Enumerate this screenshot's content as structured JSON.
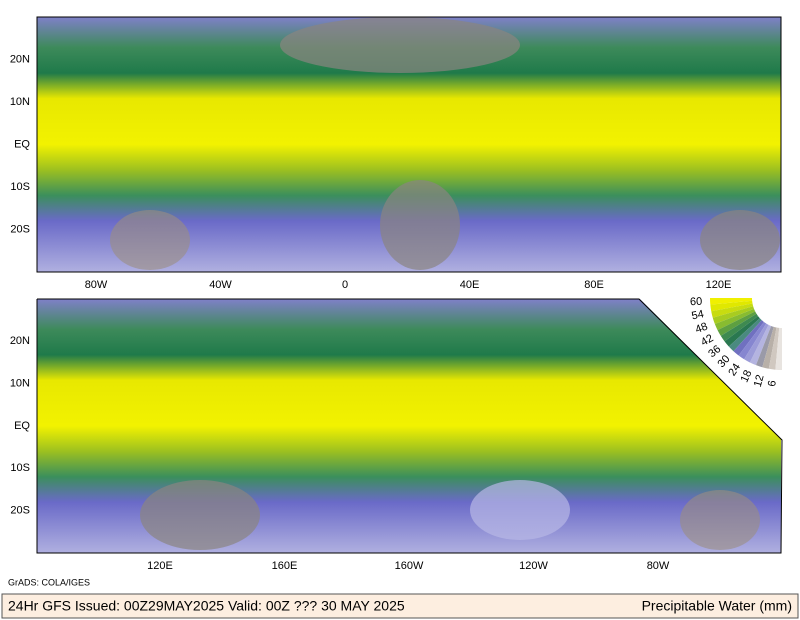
{
  "maps": [
    {
      "lat_labels": [
        "20N",
        "10N",
        "EQ",
        "10S",
        "20S"
      ],
      "lon_labels": [
        "80W",
        "40W",
        "0",
        "40E",
        "80E",
        "120E"
      ]
    },
    {
      "lat_labels": [
        "20N",
        "10N",
        "EQ",
        "10S",
        "20S"
      ],
      "lon_labels": [
        "120E",
        "160E",
        "160W",
        "120W",
        "80W"
      ]
    }
  ],
  "colorbar": {
    "labels": [
      60,
      54,
      48,
      42,
      36,
      30,
      24,
      18,
      12,
      6
    ]
  },
  "credit": "GrADS: COLA/IGES",
  "footer": {
    "left": "24Hr GFS Issued: 00Z29MAY2025 Valid: 00Z ??? 30 MAY 2025",
    "right": "Precipitable Water (mm)"
  }
}
